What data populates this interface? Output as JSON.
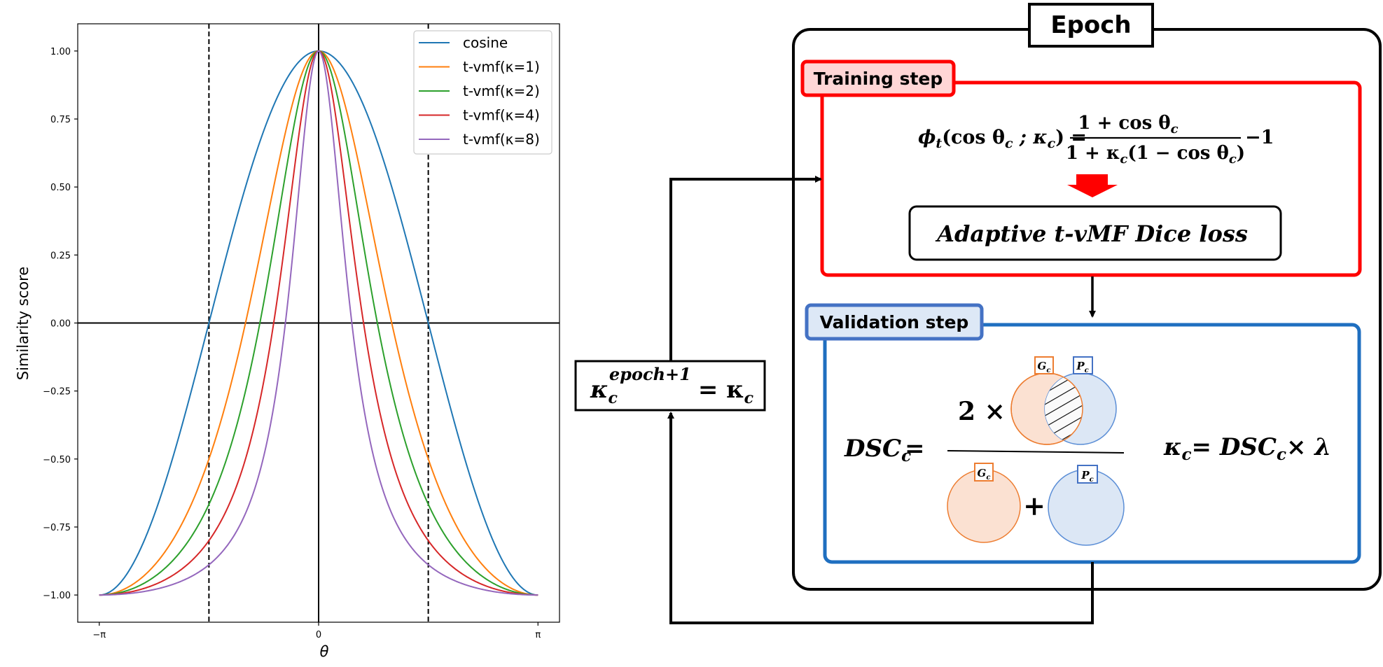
{
  "chart_data": {
    "type": "line",
    "xlabel": "θ",
    "ylabel": "Similarity score",
    "x_ticks": [
      "−π",
      "0",
      "π"
    ],
    "y_ticks": [
      "1.00",
      "0.75",
      "0.50",
      "0.25",
      "0.00",
      "−0.25",
      "−0.50",
      "−0.75",
      "−1.00"
    ],
    "xlim": [
      -3.45,
      3.45
    ],
    "ylim": [
      -1.1,
      1.1
    ],
    "vlines": [
      -1.5708,
      1.5708
    ],
    "legend_position": "top-right",
    "series": [
      {
        "name": "cosine",
        "kappa": 0,
        "color": "#1f77b4"
      },
      {
        "name": "t-vmf(κ=1)",
        "kappa": 1,
        "color": "#ff7f0e"
      },
      {
        "name": "t-vmf(κ=2)",
        "kappa": 2,
        "color": "#2ca02c"
      },
      {
        "name": "t-vmf(κ=4)",
        "kappa": 4,
        "color": "#d62728"
      },
      {
        "name": "t-vmf(κ=8)",
        "kappa": 8,
        "color": "#9467bd"
      }
    ]
  },
  "diagram": {
    "epoch_label": "Epoch",
    "training_label": "Training step",
    "validation_label": "Validation step",
    "loss_label": "Adaptive t-vMF Dice loss",
    "formula_phi": {
      "lhs": "ϕ",
      "lhs_sub": "t",
      "lhs_args": "(cos θ",
      "lhs_args_sub": "c",
      "lhs_args2": " ; κ",
      "lhs_args2_sub": "c",
      "lhs_close": ") =",
      "numerator": "1 + cos θ",
      "numerator_sub": "c",
      "denominator": "1 + κ",
      "denominator_sub": "c",
      "denominator2": "(1 − cos θ",
      "denominator2_sub": "c",
      "denominator_close": ")",
      "tail": "−1"
    },
    "dsc": {
      "lhs": "DSC",
      "lhs_sub": "c",
      "eq": "=",
      "times": "2 ×",
      "plus": "+",
      "g_label": "G",
      "g_sub": "c",
      "p_label": "P",
      "p_sub": "c"
    },
    "kappa_update": {
      "lhs": "κ",
      "lhs_sub": "c",
      "eq": "= DSC",
      "eq_sub": "c",
      "tail": "× λ"
    },
    "kappa_next": {
      "lhs": "κ",
      "lhs_sub": "c",
      "sup": "epoch+1",
      "eq": "= κ",
      "eq_sub": "c"
    },
    "colors": {
      "training": "#ff0000",
      "training_fill": "#ffd6d6",
      "validation": "#1f6fc0",
      "validation_fill": "#dde8f6",
      "g_circle": "#ed7d31",
      "g_fill": "#fbe1d2",
      "p_circle": "#5b8ed6",
      "p_fill": "#dce7f5"
    }
  }
}
